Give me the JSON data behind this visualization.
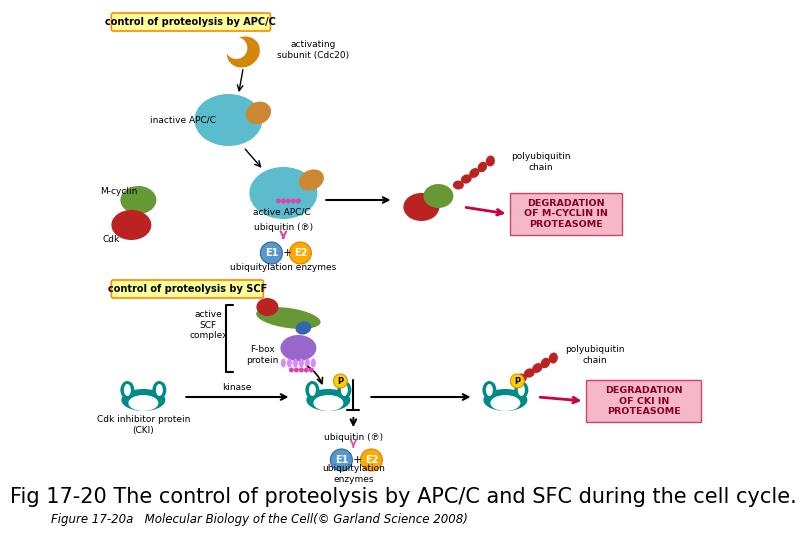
{
  "title": "Fig 17-20 The control of proteolysis by APC/C and SFC during the cell cycle.",
  "caption": "Figure 17-20a   Molecular Biology of the Cell(© Garland Science 2008)",
  "title_fontsize": 15,
  "caption_fontsize": 8.5,
  "bg_color": "#ffffff",
  "label_apc_text": "control of proteolysis by APC/C",
  "label_scf_text": "control of proteolysis by SCF",
  "label_bg": "#ffff99",
  "label_border": "#ff8800",
  "top_section": {
    "activating_subunit": "activating\nsubunit (Cdc20)",
    "inactive_apc": "inactive APC/C",
    "m_cyclin": "M-cyclin",
    "active_apc": "active APC/C",
    "cdk": "Cdk",
    "ubiquitin": "ubiquitin (℗)",
    "e1_label": "E1",
    "e2_label": "E2",
    "plus": "+",
    "ubiq_enzymes": "ubiquitylation enzymes",
    "polyubiquitin": "polyubiquitin\nchain",
    "degradation_box": "DEGRADATION\nOF M-CYCLIN IN\nPROTEASOME",
    "deg_bg": "#f4b8c8"
  },
  "bottom_section": {
    "active_scf": "active\nSCF\ncomplex",
    "fbox_label": "F-box\nprotein",
    "kinase": "kinase",
    "cdk_inhibitor": "Cdk inhibitor protein\n(CKI)",
    "p_label": "P",
    "polyubiquitin": "polyubiquitin\nchain",
    "ubiquitin": "ubiquitin (℗)",
    "e1_label": "E1",
    "e2_label": "E2",
    "plus": "+",
    "ubiq_enzymes": "ubiquitylation\nenzymes",
    "degradation_box": "DEGRADATION\nOF CKI IN\nPROTEASOME",
    "deg_bg": "#f4b8c8"
  }
}
